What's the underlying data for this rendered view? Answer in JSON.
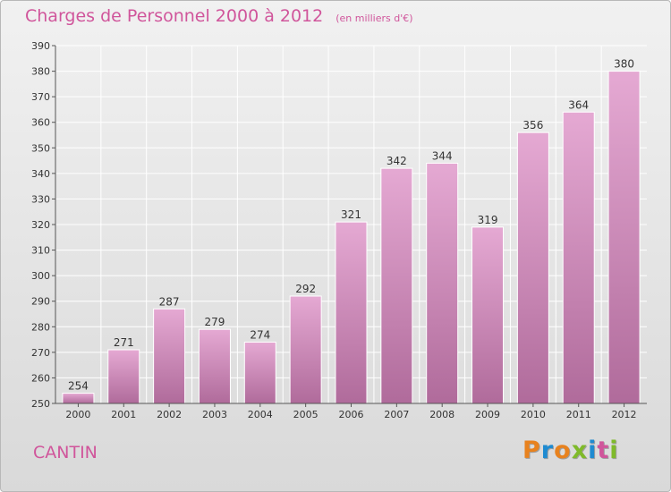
{
  "header": {
    "title": "Charges de Personnel 2000 à 2012",
    "subtitle": "(en milliers d'€)"
  },
  "footer": {
    "place": "CANTIN",
    "brand": "Proxiti",
    "brand_colors": [
      "#e8821e",
      "#1f8bd1",
      "#e8821e",
      "#7fba2a",
      "#1f8bd1",
      "#d0559b",
      "#7fba2a"
    ]
  },
  "colors": {
    "bar_top": "#e5a9d3",
    "bar_bottom": "#b06b9b",
    "bar_edge": "#ffffff",
    "axis": "#555555",
    "grid": "#ffffff",
    "text": "#333333"
  },
  "chart_data": {
    "type": "bar",
    "categories": [
      "2000",
      "2001",
      "2002",
      "2003",
      "2004",
      "2005",
      "2006",
      "2007",
      "2008",
      "2009",
      "2010",
      "2011",
      "2012"
    ],
    "values": [
      254,
      271,
      287,
      279,
      274,
      292,
      321,
      342,
      344,
      319,
      356,
      364,
      380
    ],
    "ylim": [
      250,
      390
    ],
    "yticks": [
      250,
      260,
      270,
      280,
      290,
      300,
      310,
      320,
      330,
      340,
      350,
      360,
      370,
      380,
      390
    ],
    "grid": true,
    "legend": "none",
    "data_labels": true
  }
}
